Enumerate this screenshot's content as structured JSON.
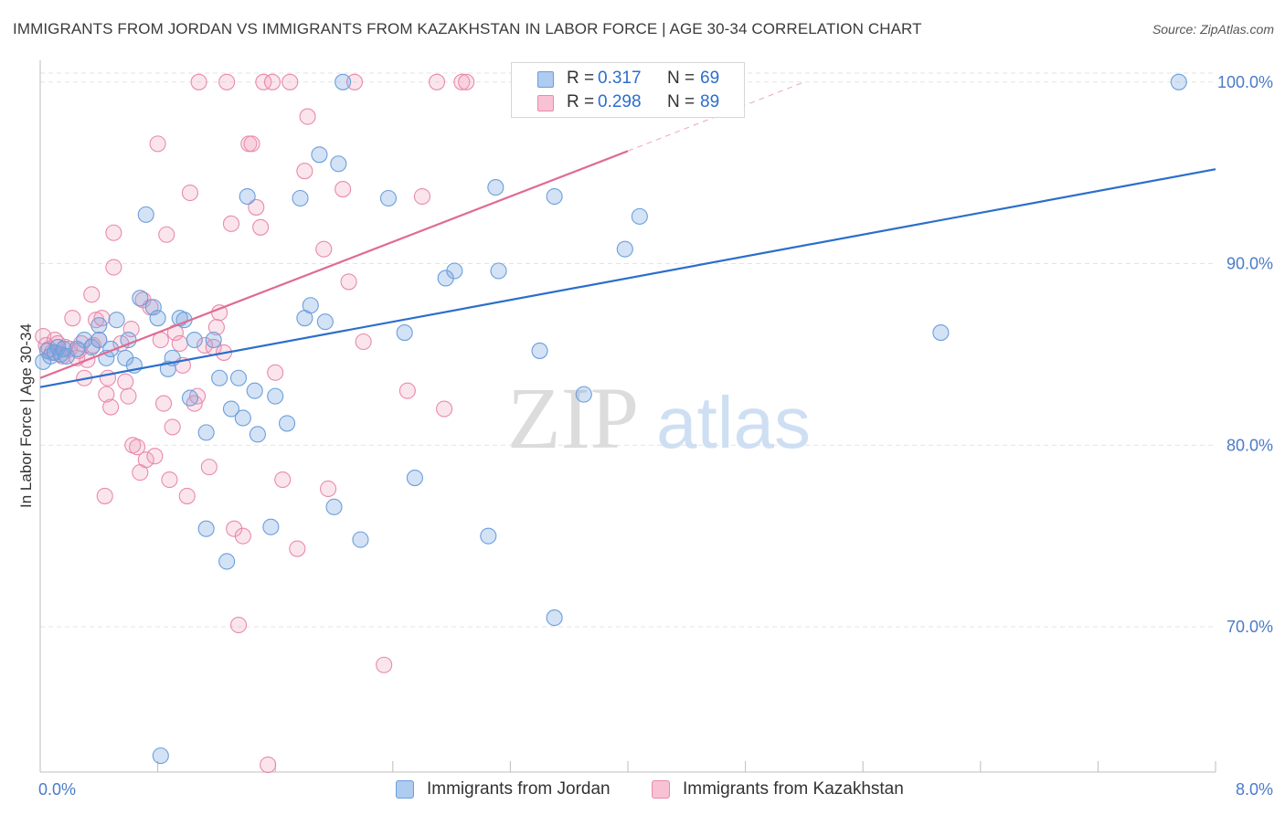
{
  "title": "IMMIGRANTS FROM JORDAN VS IMMIGRANTS FROM KAZAKHSTAN IN LABOR FORCE | AGE 30-34 CORRELATION CHART",
  "source": "Source: ZipAtlas.com",
  "watermark": {
    "zip": "ZIP",
    "atlas": "atlas"
  },
  "colors": {
    "jordan": "#6a9fdc",
    "jordan_fill": "rgba(120,165,225,0.32)",
    "jordan_line": "#2b6ecb",
    "jordan_swatch": "#aecbf0",
    "kazakhstan": "#e98aab",
    "kazakhstan_fill": "rgba(240,160,190,0.28)",
    "kazakhstan_line": "#e06b94",
    "kazakhstan_swatch": "#f8c2d4",
    "grid": "#e3e3e3",
    "tick_label": "#4a7bc8"
  },
  "legend_top": [
    {
      "r_label": "R =",
      "r_value": "0.317",
      "n_label": "N =",
      "n_value": "69"
    },
    {
      "r_label": "R =",
      "r_value": "0.298",
      "n_label": "N =",
      "n_value": "89"
    }
  ],
  "chart_data": {
    "type": "scatter",
    "title": "IMMIGRANTS FROM JORDAN VS IMMIGRANTS FROM KAZAKHSTAN IN LABOR FORCE | AGE 30-34 CORRELATION CHART",
    "xlabel": "",
    "ylabel": "In Labor Force | Age 30-34",
    "xlim": [
      0,
      8
    ],
    "ylim": [
      62,
      101.5
    ],
    "x_tick_labels": [
      "0.0%",
      "8.0%"
    ],
    "y_ticks": [
      70,
      80,
      90,
      100
    ],
    "y_tick_labels": [
      "70.0%",
      "80.0%",
      "90.0%",
      "100.0%"
    ],
    "grid": true,
    "legend_position": "bottom",
    "series": [
      {
        "name": "Immigrants from Jordan",
        "r": 0.317,
        "n": 69,
        "trend": {
          "x": [
            0,
            8
          ],
          "y": [
            83.2,
            95.2
          ]
        },
        "points": [
          [
            0.02,
            84.6
          ],
          [
            0.05,
            85.2
          ],
          [
            0.07,
            84.9
          ],
          [
            0.1,
            85.1
          ],
          [
            0.12,
            85.4
          ],
          [
            0.14,
            85.0
          ],
          [
            0.16,
            85.3
          ],
          [
            0.18,
            84.9
          ],
          [
            0.25,
            85.3
          ],
          [
            0.3,
            85.8
          ],
          [
            0.35,
            85.4
          ],
          [
            0.4,
            86.6
          ],
          [
            0.45,
            84.8
          ],
          [
            0.48,
            85.3
          ],
          [
            0.52,
            86.9
          ],
          [
            0.58,
            84.8
          ],
          [
            0.6,
            85.8
          ],
          [
            0.64,
            84.4
          ],
          [
            0.68,
            88.1
          ],
          [
            0.72,
            92.7
          ],
          [
            0.77,
            87.6
          ],
          [
            0.8,
            87.0
          ],
          [
            0.87,
            84.2
          ],
          [
            0.9,
            84.8
          ],
          [
            0.95,
            87.0
          ],
          [
            0.98,
            86.9
          ],
          [
            1.02,
            82.6
          ],
          [
            1.05,
            85.8
          ],
          [
            1.13,
            80.7
          ],
          [
            1.13,
            75.4
          ],
          [
            1.18,
            85.8
          ],
          [
            1.22,
            83.7
          ],
          [
            1.27,
            73.6
          ],
          [
            1.3,
            82.0
          ],
          [
            1.35,
            83.7
          ],
          [
            1.38,
            81.5
          ],
          [
            1.41,
            93.7
          ],
          [
            1.46,
            83.0
          ],
          [
            1.48,
            80.6
          ],
          [
            1.57,
            75.5
          ],
          [
            1.6,
            82.7
          ],
          [
            1.68,
            81.2
          ],
          [
            1.77,
            93.6
          ],
          [
            1.8,
            87.0
          ],
          [
            1.84,
            87.7
          ],
          [
            1.9,
            96.0
          ],
          [
            1.94,
            86.8
          ],
          [
            2.0,
            76.6
          ],
          [
            2.03,
            95.5
          ],
          [
            2.06,
            100.0
          ],
          [
            2.18,
            74.8
          ],
          [
            2.37,
            93.6
          ],
          [
            2.48,
            86.2
          ],
          [
            2.55,
            78.2
          ],
          [
            2.76,
            89.2
          ],
          [
            2.82,
            89.6
          ],
          [
            3.05,
            75.0
          ],
          [
            3.1,
            94.2
          ],
          [
            3.12,
            89.6
          ],
          [
            3.4,
            85.2
          ],
          [
            3.5,
            93.7
          ],
          [
            3.5,
            70.5
          ],
          [
            3.7,
            82.8
          ],
          [
            3.98,
            90.8
          ],
          [
            4.08,
            92.6
          ],
          [
            6.13,
            86.2
          ],
          [
            7.75,
            100.0
          ],
          [
            0.82,
            62.9
          ],
          [
            0.4,
            85.8
          ]
        ]
      },
      {
        "name": "Immigrants from Kazakhstan",
        "r": 0.298,
        "n": 89,
        "trend": {
          "x": [
            0,
            4.0
          ],
          "y": [
            83.7,
            96.2
          ]
        },
        "trend_dashed": {
          "x": [
            4.0,
            5.2
          ],
          "y": [
            96.2,
            100.0
          ]
        },
        "points": [
          [
            0.02,
            86.0
          ],
          [
            0.04,
            85.5
          ],
          [
            0.06,
            85.3
          ],
          [
            0.08,
            85.1
          ],
          [
            0.1,
            85.8
          ],
          [
            0.12,
            85.6
          ],
          [
            0.14,
            85.0
          ],
          [
            0.17,
            85.4
          ],
          [
            0.2,
            85.3
          ],
          [
            0.22,
            87.0
          ],
          [
            0.25,
            84.8
          ],
          [
            0.28,
            85.6
          ],
          [
            0.3,
            83.7
          ],
          [
            0.32,
            84.7
          ],
          [
            0.35,
            88.3
          ],
          [
            0.38,
            86.9
          ],
          [
            0.4,
            85.8
          ],
          [
            0.42,
            87.0
          ],
          [
            0.44,
            77.2
          ],
          [
            0.46,
            83.7
          ],
          [
            0.48,
            82.1
          ],
          [
            0.5,
            91.7
          ],
          [
            0.5,
            89.8
          ],
          [
            0.55,
            85.6
          ],
          [
            0.58,
            83.5
          ],
          [
            0.6,
            82.7
          ],
          [
            0.62,
            86.4
          ],
          [
            0.63,
            80.0
          ],
          [
            0.66,
            79.9
          ],
          [
            0.68,
            78.5
          ],
          [
            0.7,
            88.0
          ],
          [
            0.72,
            79.2
          ],
          [
            0.75,
            87.6
          ],
          [
            0.78,
            79.4
          ],
          [
            0.8,
            96.6
          ],
          [
            0.82,
            85.8
          ],
          [
            0.84,
            82.3
          ],
          [
            0.86,
            91.6
          ],
          [
            0.88,
            78.1
          ],
          [
            0.9,
            81.0
          ],
          [
            0.92,
            86.2
          ],
          [
            0.95,
            85.6
          ],
          [
            0.97,
            84.4
          ],
          [
            1.0,
            77.2
          ],
          [
            1.02,
            93.9
          ],
          [
            1.05,
            82.3
          ],
          [
            1.07,
            82.7
          ],
          [
            1.08,
            100.0
          ],
          [
            1.12,
            85.5
          ],
          [
            1.15,
            78.8
          ],
          [
            1.18,
            85.4
          ],
          [
            1.2,
            86.5
          ],
          [
            1.22,
            87.3
          ],
          [
            1.25,
            85.1
          ],
          [
            1.27,
            100.0
          ],
          [
            1.3,
            92.2
          ],
          [
            1.32,
            75.4
          ],
          [
            1.35,
            70.1
          ],
          [
            1.38,
            75.0
          ],
          [
            1.42,
            96.6
          ],
          [
            1.44,
            96.6
          ],
          [
            1.47,
            93.1
          ],
          [
            1.5,
            92.0
          ],
          [
            1.52,
            100.0
          ],
          [
            1.55,
            62.4
          ],
          [
            1.58,
            100.0
          ],
          [
            1.6,
            84.0
          ],
          [
            1.65,
            78.1
          ],
          [
            1.7,
            100.0
          ],
          [
            1.75,
            74.3
          ],
          [
            1.8,
            95.1
          ],
          [
            1.82,
            98.1
          ],
          [
            1.93,
            90.8
          ],
          [
            1.96,
            77.6
          ],
          [
            2.06,
            94.1
          ],
          [
            2.1,
            89.0
          ],
          [
            2.14,
            100.0
          ],
          [
            2.2,
            85.7
          ],
          [
            2.34,
            67.9
          ],
          [
            2.5,
            83.0
          ],
          [
            2.6,
            93.7
          ],
          [
            2.7,
            100.0
          ],
          [
            2.75,
            82.0
          ],
          [
            2.87,
            100.0
          ],
          [
            2.9,
            100.0
          ],
          [
            0.15,
            84.9
          ],
          [
            0.26,
            85.2
          ],
          [
            0.36,
            85.5
          ],
          [
            0.45,
            82.8
          ]
        ]
      }
    ]
  },
  "legend_bottom": [
    "Immigrants from Jordan",
    "Immigrants from Kazakhstan"
  ]
}
